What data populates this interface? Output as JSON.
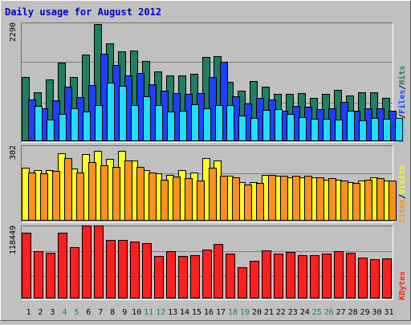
{
  "colors": {
    "hits": "#1f7f5f",
    "files": "#1f3fff",
    "pages": "#1fdfff",
    "visits": "#ffff1f",
    "sites": "#ff8f1f",
    "kbytes": "#ff1f1f",
    "weekend_day": "#1f7f5f",
    "weekday": "#000000",
    "title": "#0000cc"
  },
  "chart_data": {
    "type": "bar",
    "title": "Daily usage for August 2012",
    "categories": [
      "1",
      "2",
      "3",
      "4",
      "5",
      "6",
      "7",
      "8",
      "9",
      "10",
      "11",
      "12",
      "13",
      "14",
      "15",
      "16",
      "17",
      "18",
      "19",
      "20",
      "21",
      "22",
      "23",
      "24",
      "25",
      "26",
      "27",
      "28",
      "29",
      "30",
      "31"
    ],
    "weekend_days": [
      "4",
      "5",
      "11",
      "12",
      "18",
      "19",
      "25",
      "26"
    ],
    "panels": [
      {
        "name": "hits-files-pages",
        "ymax_label": "2290",
        "ylim": [
          0,
          2290
        ],
        "legend": [
          "Pages",
          "/",
          "Files",
          "/",
          "Hits"
        ],
        "series": [
          {
            "name": "Hits",
            "values": [
              1250,
              950,
              1200,
              1530,
              1250,
              1690,
              2290,
              1920,
              1750,
              1770,
              1570,
              1370,
              1290,
              1290,
              1310,
              1650,
              1670,
              1160,
              990,
              1170,
              1070,
              930,
              930,
              940,
              850,
              920,
              1000,
              900,
              950,
              950,
              850
            ]
          },
          {
            "name": "Files",
            "values": [
              810,
              650,
              800,
              1060,
              870,
              1100,
              1710,
              1490,
              1290,
              1340,
              1110,
              990,
              940,
              920,
              940,
              1250,
              1550,
              880,
              740,
              850,
              820,
              600,
              690,
              670,
              630,
              650,
              770,
              600,
              650,
              650,
              590
            ]
          },
          {
            "name": "Pages",
            "values": [
              690,
              430,
              540,
              640,
              580,
              710,
              1150,
              1090,
              700,
              880,
              700,
              580,
              590,
              720,
              640,
              700,
              700,
              500,
              460,
              610,
              630,
              540,
              470,
              440,
              440,
              420,
              590,
              400,
              450,
              440,
              450
            ]
          }
        ]
      },
      {
        "name": "visits-sites",
        "ymax_label": "302",
        "ylim": [
          0,
          302
        ],
        "legend": [
          "Sites",
          "/",
          "Visits"
        ],
        "series": [
          {
            "name": "Visits",
            "values": [
              220,
              210,
              210,
              280,
              215,
              275,
              290,
              255,
              290,
              250,
              210,
              195,
              190,
              210,
              200,
              260,
              250,
              185,
              160,
              160,
              190,
              185,
              180,
              180,
              180,
              170,
              170,
              160,
              165,
              180,
              165
            ]
          },
          {
            "name": "Sites",
            "values": [
              200,
              195,
              205,
              260,
              198,
              242,
              230,
              222,
              250,
              222,
              200,
              168,
              183,
              175,
              165,
              220,
              185,
              180,
              150,
              155,
              188,
              185,
              185,
              185,
              180,
              175,
              165,
              155,
              170,
              175,
              165
            ]
          }
        ]
      },
      {
        "name": "kbytes",
        "ymax_label": "118449",
        "ylim": [
          0,
          118449
        ],
        "legend": [
          "KBytes"
        ],
        "series": [
          {
            "name": "KBytes",
            "values": [
              110000,
              80000,
              77000,
              110000,
              86000,
              123000,
              123000,
              98000,
              98000,
              95000,
              93000,
              72000,
              80000,
              71000,
              73000,
              82000,
              91000,
              76000,
              53000,
              63000,
              81000,
              76000,
              78000,
              73000,
              73000,
              75000,
              79000,
              77000,
              69000,
              66000,
              67000
            ]
          }
        ]
      }
    ]
  }
}
